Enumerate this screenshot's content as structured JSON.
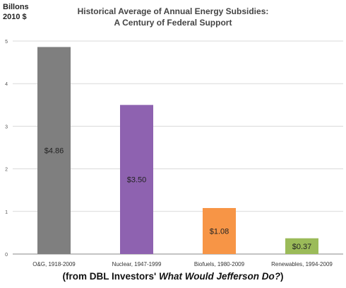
{
  "chart_data": {
    "type": "bar",
    "title": "Historical Average of Annual Energy Subsidies:",
    "subtitle": "A Century of Federal Support",
    "ylabel_line1": "Billons",
    "ylabel_line2": "2010 $",
    "categories": [
      "O&G, 1918-2009",
      "Nuclear, 1947-1999",
      "Biofuels, 1980-2009",
      "Renewables, 1994-2009"
    ],
    "values": [
      4.86,
      3.5,
      1.08,
      0.37
    ],
    "data_labels": [
      "$4.86",
      "$3.50",
      "$1.08",
      "$0.37"
    ],
    "bar_colors": [
      "#7f7f7f",
      "#8e62b0",
      "#f79546",
      "#9bbb59"
    ],
    "yticks": [
      "0",
      "1",
      "2",
      "3",
      "4",
      "5"
    ],
    "ylim": [
      0,
      5
    ],
    "grid": true,
    "legend": "none"
  },
  "caption": {
    "prefix": "(from DBL Investors' ",
    "italic": "What Would Jefferson Do?",
    "suffix": ")"
  }
}
